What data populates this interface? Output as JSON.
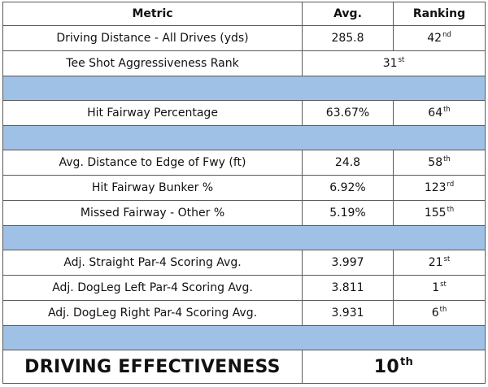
{
  "table": {
    "headers": [
      "Metric",
      "Avg.",
      "Ranking"
    ],
    "rows": [
      {
        "type": "data",
        "metric": "Driving Distance - All Drives (yds)",
        "avg": "285.8",
        "rank_num": "42",
        "rank_suffix": "nd"
      },
      {
        "type": "span",
        "metric": "Tee Shot Aggressiveness Rank",
        "rank_num": "31",
        "rank_suffix": "st"
      },
      {
        "type": "separator"
      },
      {
        "type": "data",
        "metric": "Hit Fairway Percentage",
        "avg": "63.67%",
        "rank_num": "64",
        "rank_suffix": "th"
      },
      {
        "type": "separator"
      },
      {
        "type": "data",
        "metric": "Avg. Distance to Edge of Fwy (ft)",
        "avg": "24.8",
        "rank_num": "58",
        "rank_suffix": "th"
      },
      {
        "type": "data",
        "metric": "Hit Fairway Bunker %",
        "avg": "6.92%",
        "rank_num": "123",
        "rank_suffix": "rd"
      },
      {
        "type": "data",
        "metric": "Missed Fairway - Other %",
        "avg": "5.19%",
        "rank_num": "155",
        "rank_suffix": "th"
      },
      {
        "type": "separator"
      },
      {
        "type": "data",
        "metric": "Adj. Straight Par-4 Scoring Avg.",
        "avg": "3.997",
        "rank_num": "21",
        "rank_suffix": "st"
      },
      {
        "type": "data",
        "metric": "Adj. DogLeg Left Par-4 Scoring Avg.",
        "avg": "3.811",
        "rank_num": "1",
        "rank_suffix": "st"
      },
      {
        "type": "data",
        "metric": "Adj. DogLeg Right Par-4 Scoring Avg.",
        "avg": "3.931",
        "rank_num": "6",
        "rank_suffix": "th"
      },
      {
        "type": "separator"
      },
      {
        "type": "big",
        "metric": "DRIVING EFFECTIVENESS",
        "rank_num": "10",
        "rank_suffix": "th"
      }
    ]
  },
  "colors": {
    "separator": "#9fc1e6",
    "border": "#5a5a5a"
  }
}
